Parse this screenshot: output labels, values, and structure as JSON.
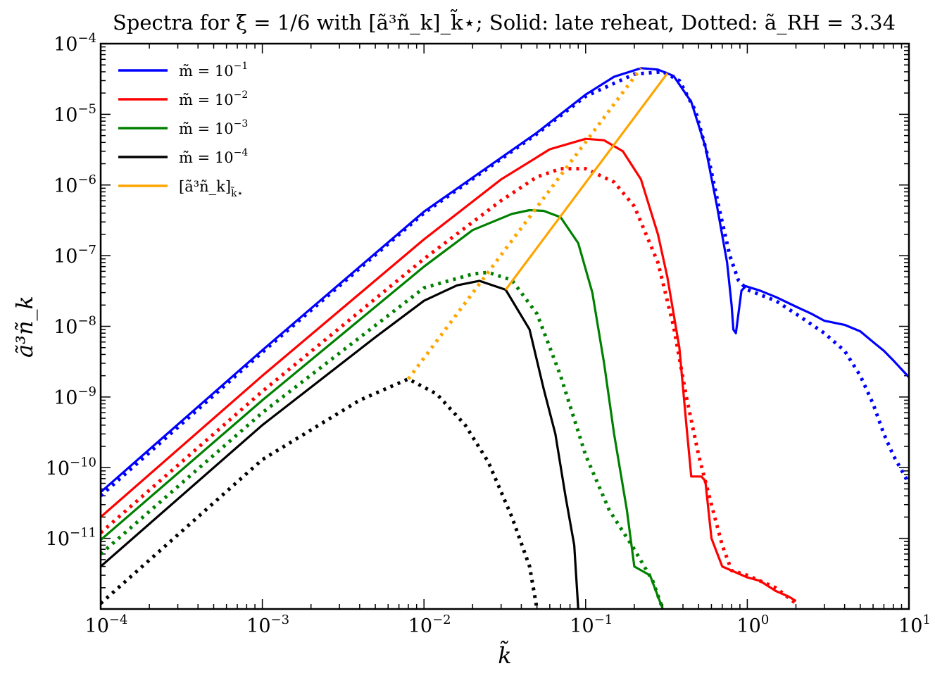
{
  "chart_data": {
    "type": "line",
    "title": "Spectra for ξ = 1/6 with [ã³ñ_k]_k̃⋆; Solid: late reheat, Dotted: ã_RH = 3.34",
    "xlabel": "k̃",
    "ylabel": "ã³ñ_k",
    "xscale": "log",
    "yscale": "log",
    "xlim": [
      0.0001,
      10
    ],
    "ylim": [
      1e-12,
      0.0001
    ],
    "x_ticks": [
      {
        "value": 0.0001,
        "base": "10",
        "exp": "−4"
      },
      {
        "value": 0.001,
        "base": "10",
        "exp": "−3"
      },
      {
        "value": 0.01,
        "base": "10",
        "exp": "−2"
      },
      {
        "value": 0.1,
        "base": "10",
        "exp": "−1"
      },
      {
        "value": 1,
        "base": "10",
        "exp": "0"
      },
      {
        "value": 10,
        "base": "10",
        "exp": "1"
      }
    ],
    "y_ticks": [
      {
        "value": 1e-11,
        "base": "10",
        "exp": "−11"
      },
      {
        "value": 1e-10,
        "base": "10",
        "exp": "−10"
      },
      {
        "value": 1e-09,
        "base": "10",
        "exp": "−9"
      },
      {
        "value": 1e-08,
        "base": "10",
        "exp": "−8"
      },
      {
        "value": 1e-07,
        "base": "10",
        "exp": "−7"
      },
      {
        "value": 1e-06,
        "base": "10",
        "exp": "−6"
      },
      {
        "value": 1e-05,
        "base": "10",
        "exp": "−5"
      },
      {
        "value": 0.0001,
        "base": "10",
        "exp": "−4"
      }
    ],
    "legend_position": "top-left",
    "legend": [
      {
        "label": "m̃ = 10",
        "exp": "−1",
        "color": "#0000ff"
      },
      {
        "label": "m̃ = 10",
        "exp": "−2",
        "color": "#ff0000"
      },
      {
        "label": "m̃ = 10",
        "exp": "−3",
        "color": "#008000"
      },
      {
        "label": "m̃ = 10",
        "exp": "−4",
        "color": "#000000"
      },
      {
        "label": "[ã³ñ_k]",
        "exp": "k̃⋆",
        "color": "#ffa500"
      }
    ],
    "series": [
      {
        "name": "m=1e-1 late reheat",
        "color": "#0000ff",
        "style": "solid",
        "points": [
          [
            0.0001,
            4.5e-11
          ],
          [
            0.001,
            4.6e-09
          ],
          [
            0.01,
            4.2e-07
          ],
          [
            0.05,
            5.5e-06
          ],
          [
            0.1,
            1.9e-05
          ],
          [
            0.15,
            3.4e-05
          ],
          [
            0.22,
            4.5e-05
          ],
          [
            0.28,
            4.3e-05
          ],
          [
            0.35,
            3.5e-05
          ],
          [
            0.45,
            1.5e-05
          ],
          [
            0.55,
            3.5e-06
          ],
          [
            0.65,
            5e-07
          ],
          [
            0.75,
            8e-08
          ],
          [
            0.8,
            2e-08
          ],
          [
            0.82,
            9e-09
          ],
          [
            0.85,
            8e-09
          ],
          [
            0.92,
            3.2e-08
          ],
          [
            0.98,
            3.7e-08
          ],
          [
            1.2,
            3.2e-08
          ],
          [
            1.5,
            2.6e-08
          ],
          [
            2,
            1.9e-08
          ],
          [
            2.5,
            1.5e-08
          ],
          [
            3,
            1.2e-08
          ],
          [
            4,
            1.05e-08
          ],
          [
            5,
            8.5e-09
          ],
          [
            6,
            6e-09
          ],
          [
            7,
            4.5e-09
          ],
          [
            8,
            3.3e-09
          ],
          [
            10,
            1.9e-09
          ]
        ]
      },
      {
        "name": "m=1e-1 dotted",
        "color": "#0000ff",
        "style": "dotted",
        "points": [
          [
            0.0001,
            4e-11
          ],
          [
            0.001,
            4.3e-09
          ],
          [
            0.01,
            4e-07
          ],
          [
            0.05,
            5.3e-06
          ],
          [
            0.1,
            1.8e-05
          ],
          [
            0.2,
            3.7e-05
          ],
          [
            0.3,
            4e-05
          ],
          [
            0.38,
            3e-05
          ],
          [
            0.48,
            1.1e-05
          ],
          [
            0.58,
            2.2e-06
          ],
          [
            0.68,
            4e-07
          ],
          [
            0.78,
            1e-07
          ],
          [
            0.88,
            4.5e-08
          ],
          [
            1,
            3.3e-08
          ],
          [
            1.5,
            2.3e-08
          ],
          [
            2,
            1.5e-08
          ],
          [
            3,
            8e-09
          ],
          [
            4,
            4.5e-09
          ],
          [
            5,
            2e-09
          ],
          [
            6,
            8e-10
          ],
          [
            7,
            3e-10
          ],
          [
            8,
            1.5e-10
          ],
          [
            10,
            6e-11
          ]
        ]
      },
      {
        "name": "m=1e-2 late reheat",
        "color": "#ff0000",
        "style": "solid",
        "points": [
          [
            0.0001,
            2e-11
          ],
          [
            0.001,
            2e-09
          ],
          [
            0.01,
            1.7e-07
          ],
          [
            0.03,
            1.2e-06
          ],
          [
            0.06,
            3.2e-06
          ],
          [
            0.1,
            4.5e-06
          ],
          [
            0.13,
            4.3e-06
          ],
          [
            0.17,
            3e-06
          ],
          [
            0.22,
            1.2e-06
          ],
          [
            0.28,
            2e-07
          ],
          [
            0.32,
            5e-08
          ],
          [
            0.38,
            5e-09
          ],
          [
            0.42,
            4e-10
          ],
          [
            0.45,
            7.5e-11
          ],
          [
            0.52,
            7.5e-11
          ],
          [
            0.55,
            6.5e-11
          ],
          [
            0.6,
            1e-11
          ],
          [
            0.7,
            4e-12
          ],
          [
            0.8,
            3.5e-12
          ],
          [
            1,
            2.8e-12
          ],
          [
            1.2,
            2.5e-12
          ],
          [
            1.5,
            1.8e-12
          ],
          [
            1.8,
            1.5e-12
          ],
          [
            2,
            1.3e-12
          ]
        ]
      },
      {
        "name": "m=1e-2 dotted",
        "color": "#ff0000",
        "style": "dotted",
        "points": [
          [
            0.0001,
            1.2e-11
          ],
          [
            0.001,
            1.2e-09
          ],
          [
            0.01,
            9e-08
          ],
          [
            0.03,
            6e-07
          ],
          [
            0.05,
            1.3e-06
          ],
          [
            0.07,
            1.7e-06
          ],
          [
            0.1,
            1.7e-06
          ],
          [
            0.15,
            1.1e-06
          ],
          [
            0.2,
            5e-07
          ],
          [
            0.28,
            8e-08
          ],
          [
            0.35,
            1e-08
          ],
          [
            0.42,
            1e-09
          ],
          [
            0.5,
            1.5e-10
          ],
          [
            0.6,
            3e-11
          ],
          [
            0.7,
            8e-12
          ],
          [
            0.8,
            3.5e-12
          ],
          [
            1,
            3e-12
          ],
          [
            1.5,
            2e-12
          ],
          [
            2,
            1.2e-12
          ]
        ]
      },
      {
        "name": "m=1e-3 late reheat",
        "color": "#008000",
        "style": "solid",
        "points": [
          [
            0.0001,
            9.5e-12
          ],
          [
            0.001,
            9e-10
          ],
          [
            0.01,
            7e-08
          ],
          [
            0.02,
            2.3e-07
          ],
          [
            0.035,
            3.9e-07
          ],
          [
            0.045,
            4.4e-07
          ],
          [
            0.055,
            4.3e-07
          ],
          [
            0.07,
            3.5e-07
          ],
          [
            0.09,
            1.5e-07
          ],
          [
            0.11,
            3e-08
          ],
          [
            0.13,
            3e-09
          ],
          [
            0.15,
            3e-10
          ],
          [
            0.18,
            2.5e-11
          ],
          [
            0.2,
            4e-12
          ],
          [
            0.25,
            3e-12
          ],
          [
            0.3,
            1e-12
          ]
        ]
      },
      {
        "name": "m=1e-3 dotted",
        "color": "#008000",
        "style": "dotted",
        "points": [
          [
            0.0001,
            6e-12
          ],
          [
            0.001,
            6e-10
          ],
          [
            0.01,
            3.5e-08
          ],
          [
            0.02,
            5.5e-08
          ],
          [
            0.025,
            5.8e-08
          ],
          [
            0.035,
            4.5e-08
          ],
          [
            0.05,
            1.5e-08
          ],
          [
            0.07,
            2e-09
          ],
          [
            0.1,
            1.5e-10
          ],
          [
            0.14,
            2.5e-11
          ],
          [
            0.2,
            7e-12
          ],
          [
            0.26,
            2.5e-12
          ],
          [
            0.3,
            1e-12
          ]
        ]
      },
      {
        "name": "m=1e-4 late reheat",
        "color": "#000000",
        "style": "solid",
        "points": [
          [
            0.0001,
            4e-12
          ],
          [
            0.001,
            4e-10
          ],
          [
            0.005,
            7e-09
          ],
          [
            0.01,
            2.3e-08
          ],
          [
            0.016,
            3.8e-08
          ],
          [
            0.022,
            4.4e-08
          ],
          [
            0.032,
            3.3e-08
          ],
          [
            0.045,
            9e-09
          ],
          [
            0.055,
            1.3e-09
          ],
          [
            0.065,
            3e-10
          ],
          [
            0.075,
            4e-11
          ],
          [
            0.085,
            8e-12
          ],
          [
            0.09,
            1e-12
          ]
        ]
      },
      {
        "name": "m=1e-4 dotted",
        "color": "#000000",
        "style": "dotted",
        "points": [
          [
            0.0001,
            1.2e-12
          ],
          [
            0.001,
            1.3e-10
          ],
          [
            0.004,
            9e-10
          ],
          [
            0.008,
            1.8e-09
          ],
          [
            0.012,
            1.1e-09
          ],
          [
            0.018,
            4e-10
          ],
          [
            0.025,
            1.2e-10
          ],
          [
            0.035,
            2e-11
          ],
          [
            0.045,
            4e-12
          ],
          [
            0.05,
            1e-12
          ]
        ]
      },
      {
        "name": "[a3nk]_k* late reheat",
        "color": "#ffa500",
        "style": "solid",
        "points": [
          [
            0.032,
            3.3e-08
          ],
          [
            0.32,
            3.8e-05
          ]
        ]
      },
      {
        "name": "[a3nk]_k* dotted",
        "color": "#ffa500",
        "style": "dotted",
        "points": [
          [
            0.008,
            1.8e-09
          ],
          [
            0.22,
            4.5e-05
          ]
        ]
      }
    ]
  }
}
